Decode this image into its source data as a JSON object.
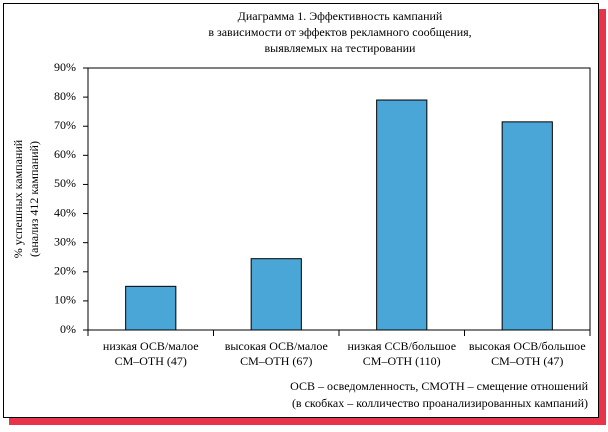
{
  "chart_data": {
    "type": "bar",
    "title": [
      "Диаграмма 1. Эффективность кампаний",
      "в зависимости от эффектов рекламного сообщения,",
      "выявляемых на тестировании"
    ],
    "y_label": [
      "% успешных кампаний",
      "(анализ 412 кампаний)"
    ],
    "categories": [
      [
        "низкая ОСВ/малое",
        "СМ–ОТН (47)"
      ],
      [
        "высокая ОСВ/малое",
        "СМ–ОТН (67)"
      ],
      [
        "низкая ССВ/большое",
        "СМ–ОТН (110)"
      ],
      [
        "высокая ОСВ/большое",
        "СМ–ОТН (47)"
      ]
    ],
    "values": [
      15,
      24.5,
      79,
      71.5
    ],
    "color": "#4aa6d6",
    "ylim": [
      0,
      90
    ],
    "yticks": [
      {
        "value": 0,
        "label": "0%"
      },
      {
        "value": 10,
        "label": "10%"
      },
      {
        "value": 20,
        "label": "20%"
      },
      {
        "value": 30,
        "label": "30%"
      },
      {
        "value": 40,
        "label": "40%"
      },
      {
        "value": 50,
        "label": "50%"
      },
      {
        "value": 60,
        "label": "60%"
      },
      {
        "value": 70,
        "label": "70%"
      },
      {
        "value": 80,
        "label": "80%"
      },
      {
        "value": 90,
        "label": "90%"
      }
    ],
    "notes": [
      "ОСВ – осведомленность, СМОТН – смещение отношений",
      "(в скобках – колличество проанализированных кампаний)"
    ]
  }
}
